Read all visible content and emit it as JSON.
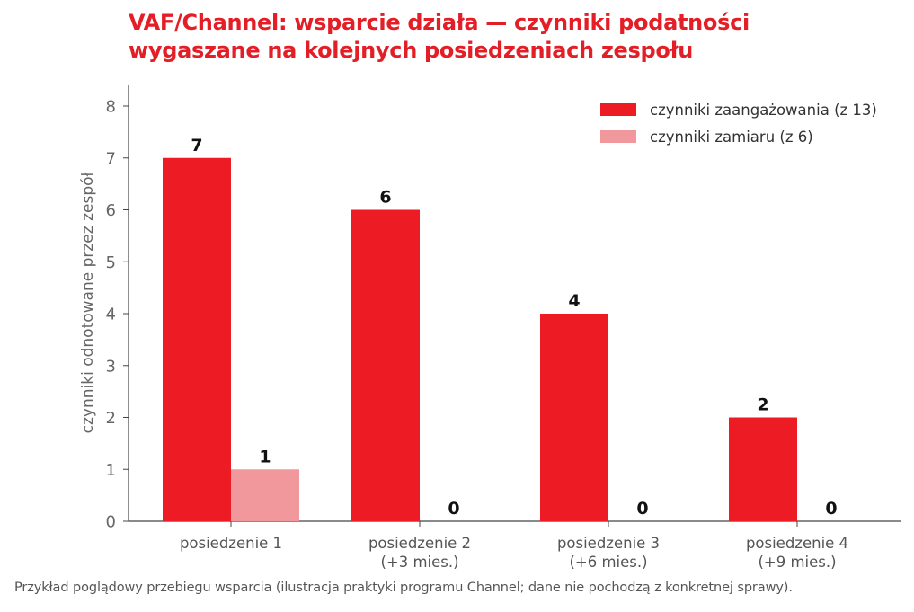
{
  "chart_data": {
    "type": "bar",
    "title_lines": [
      "VAF/Channel: wsparcie działa — czynniki podatności",
      "wygaszane na kolejnych posiedzeniach zespołu"
    ],
    "categories": [
      [
        "posiedzenie 1"
      ],
      [
        "posiedzenie 2",
        "(+3 mies.)"
      ],
      [
        "posiedzenie 3",
        "(+6 mies.)"
      ],
      [
        "posiedzenie 4",
        "(+9 mies.)"
      ]
    ],
    "series": [
      {
        "name": "czynniki zaangażowania (z 13)",
        "values": [
          7,
          6,
          4,
          2
        ],
        "color": "#ed1c24"
      },
      {
        "name": "czynniki zamiaru (z 6)",
        "values": [
          1,
          0,
          0,
          0
        ],
        "color": "#f0989b"
      }
    ],
    "ylabel": "czynniki odnotowane przez zespół",
    "xlabel": "",
    "ylim": [
      0,
      8
    ],
    "yticks": [
      0,
      1,
      2,
      3,
      4,
      5,
      6,
      7,
      8
    ],
    "legend_position": "top-right",
    "grid": false,
    "data_labels": true
  },
  "footnote": "Przykład poglądowy przebiegu wsparcia (ilustracja praktyki programu Channel; dane nie pochodzą z konkretnej sprawy)."
}
